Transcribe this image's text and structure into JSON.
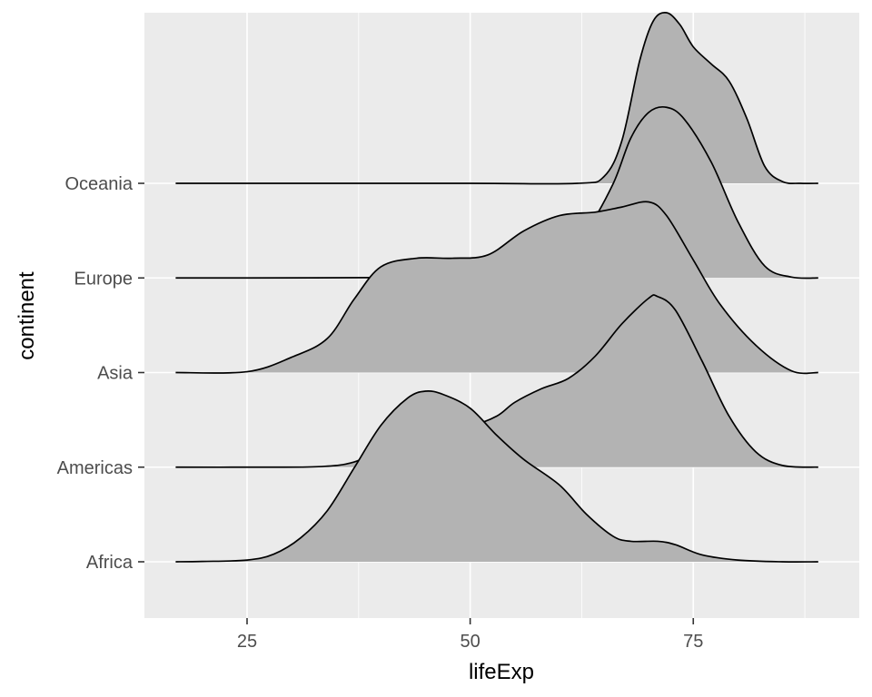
{
  "chart_data": {
    "type": "ridgeline",
    "xlabel": "lifeExp",
    "ylabel": "continent",
    "xlim": [
      13.5,
      93.6
    ],
    "x_ticks": [
      25,
      50,
      75
    ],
    "x_tick_labels": [
      "25",
      "50",
      "75"
    ],
    "categories": [
      "Africa",
      "Americas",
      "Asia",
      "Europe",
      "Oceania"
    ],
    "grid": true,
    "panel_background": "#ebebeb",
    "grid_color": "#ffffff",
    "fill_color": "#b3b3b3",
    "line_color": "#000000",
    "series": [
      {
        "name": "Africa",
        "x": [
          17.0,
          20.0,
          25.0,
          28.0,
          31.0,
          34.0,
          37.0,
          40.0,
          43.0,
          45.0,
          47.0,
          50.0,
          53.0,
          56.0,
          60.0,
          63.0,
          66.0,
          68.0,
          71.0,
          73.0,
          76.0,
          80.0,
          85.0,
          89.0
        ],
        "density": [
          0.0,
          0.002,
          0.01,
          0.045,
          0.14,
          0.3,
          0.55,
          0.8,
          0.96,
          1.0,
          0.98,
          0.9,
          0.74,
          0.6,
          0.45,
          0.28,
          0.15,
          0.12,
          0.12,
          0.1,
          0.04,
          0.01,
          0.0,
          0.0
        ]
      },
      {
        "name": "Americas",
        "x": [
          17.0,
          25.0,
          33.0,
          37.0,
          40.0,
          43.0,
          46.0,
          50.0,
          53.0,
          55.0,
          58.0,
          61.0,
          64.0,
          67.0,
          70.0,
          71.0,
          73.0,
          76.0,
          79.0,
          82.0,
          85.0,
          89.0
        ],
        "density": [
          0.0,
          0.0,
          0.003,
          0.03,
          0.11,
          0.17,
          0.2,
          0.24,
          0.3,
          0.38,
          0.46,
          0.52,
          0.65,
          0.84,
          0.99,
          1.0,
          0.92,
          0.62,
          0.3,
          0.09,
          0.01,
          0.0
        ]
      },
      {
        "name": "Asia",
        "x": [
          17.0,
          25.0,
          30.0,
          34.0,
          37.0,
          40.0,
          44.0,
          48.0,
          52.0,
          56.0,
          60.0,
          64.0,
          67.0,
          70.0,
          72.0,
          75.0,
          78.0,
          82.0,
          86.0,
          89.0
        ],
        "density": [
          0.0,
          0.005,
          0.09,
          0.2,
          0.43,
          0.62,
          0.67,
          0.67,
          0.69,
          0.83,
          0.92,
          0.94,
          0.97,
          1.0,
          0.92,
          0.66,
          0.4,
          0.16,
          0.01,
          0.0
        ]
      },
      {
        "name": "Europe",
        "x": [
          17.0,
          25.0,
          40.0,
          48.0,
          53.0,
          57.0,
          60.0,
          63.0,
          66.0,
          68.0,
          70.0,
          72.0,
          74.0,
          77.0,
          80.0,
          83.0,
          86.0,
          89.0
        ],
        "density": [
          0.0,
          0.0,
          0.002,
          0.01,
          0.04,
          0.1,
          0.17,
          0.28,
          0.55,
          0.82,
          0.97,
          1.0,
          0.93,
          0.68,
          0.33,
          0.07,
          0.005,
          0.0
        ]
      },
      {
        "name": "Oceania",
        "x": [
          17.0,
          25.0,
          50.0,
          62.0,
          65.0,
          67.0,
          69.0,
          70.5,
          72.0,
          73.5,
          75.0,
          77.0,
          79.0,
          81.0,
          83.0,
          85.0,
          87.0,
          89.0
        ],
        "density": [
          0.0,
          0.0,
          0.0,
          0.0,
          0.04,
          0.25,
          0.72,
          0.95,
          1.0,
          0.93,
          0.8,
          0.7,
          0.6,
          0.38,
          0.1,
          0.01,
          0.0,
          0.0
        ]
      }
    ]
  }
}
